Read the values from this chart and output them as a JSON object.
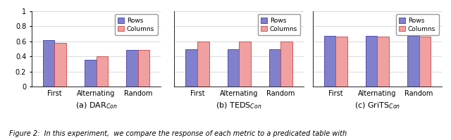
{
  "subplots": [
    {
      "xlabel": "(a) DAR$_{Con}$",
      "categories": [
        "First",
        "Alternating",
        "Random"
      ],
      "rows": [
        0.62,
        0.36,
        0.49
      ],
      "cols": [
        0.58,
        0.4,
        0.49
      ]
    },
    {
      "xlabel": "(b) TEDS$_{Con}$",
      "categories": [
        "First",
        "Alternating",
        "Random"
      ],
      "rows": [
        0.5,
        0.5,
        0.5
      ],
      "cols": [
        0.6,
        0.6,
        0.6
      ]
    },
    {
      "xlabel": "(c) GriTS$_{Con}$",
      "categories": [
        "First",
        "Alternating",
        "Random"
      ],
      "rows": [
        0.67,
        0.67,
        0.67
      ],
      "cols": [
        0.66,
        0.66,
        0.66
      ]
    }
  ],
  "row_color": "#8080CC",
  "col_color": "#F0A0A0",
  "row_edge_color": "#4040AA",
  "col_edge_color": "#CC4444",
  "ylim": [
    0,
    1
  ],
  "yticks": [
    0,
    0.2,
    0.4,
    0.6,
    0.8,
    1.0
  ],
  "ytick_labels": [
    "0",
    "0.2",
    "0.4",
    "0.6",
    "0.8",
    "1"
  ],
  "bar_width": 0.28,
  "caption": "Figure 2:  In this experiment,  we compare the response of each metric to a predicated table with"
}
